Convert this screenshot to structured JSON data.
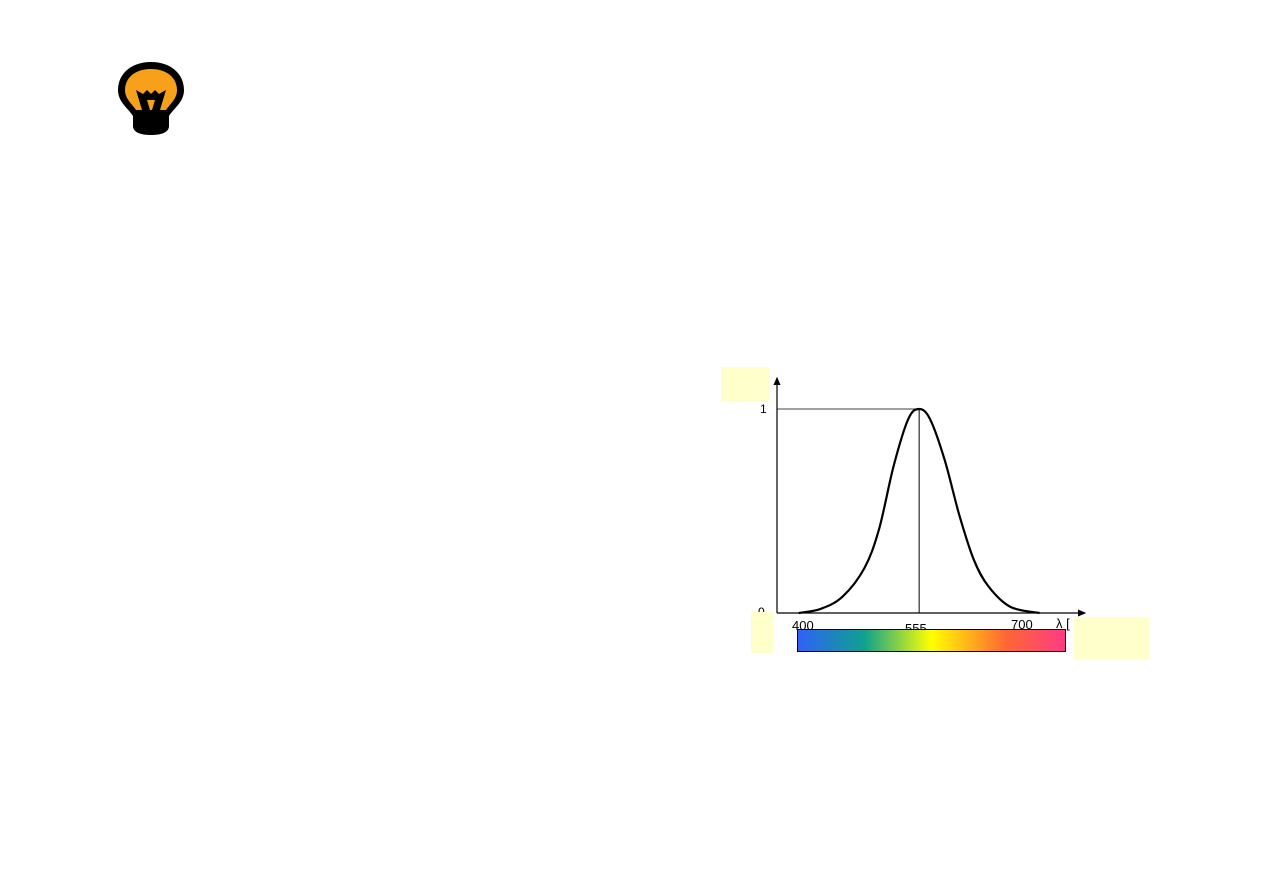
{
  "icon": "lightbulb-icon",
  "colors": {
    "bulb": "#f7a11a",
    "note": "#ffffcc",
    "curve": "#000000"
  },
  "chart_data": {
    "type": "line",
    "title": "",
    "xlabel": "λ [",
    "ylabel": "",
    "x_ticks": [
      "400",
      "555",
      "700"
    ],
    "y_ticks": [
      "0",
      "1"
    ],
    "xlim": [
      360,
      760
    ],
    "ylim": [
      0,
      1.15
    ],
    "grid": false,
    "peak": {
      "x": 555,
      "y": 1
    },
    "x": [
      390,
      420,
      450,
      480,
      500,
      520,
      540,
      555,
      570,
      590,
      610,
      630,
      650,
      680,
      720
    ],
    "y": [
      0,
      0.02,
      0.08,
      0.22,
      0.41,
      0.72,
      0.95,
      1,
      0.95,
      0.75,
      0.48,
      0.26,
      0.13,
      0.03,
      0
    ],
    "spectrum_colors": [
      "#2f62f5",
      "#0fa28f",
      "#ffff00",
      "#ff6633",
      "#ff3b86"
    ]
  }
}
